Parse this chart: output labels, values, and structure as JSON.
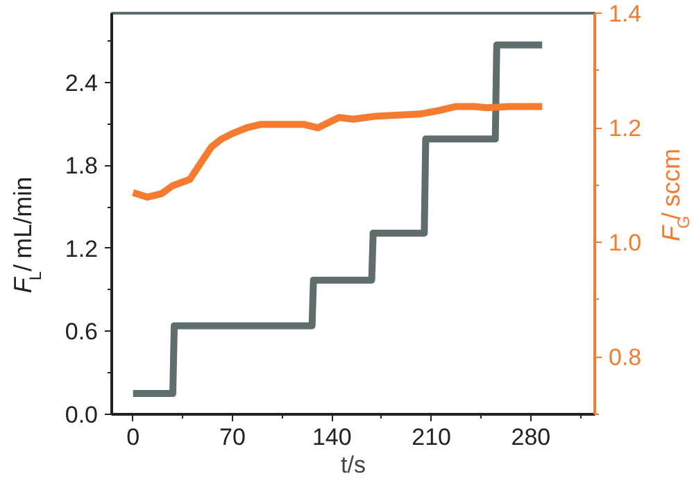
{
  "chart_data": {
    "type": "line",
    "xlabel": "t/s",
    "ylabel": "F$_{L}$/ mL/min",
    "y2label": "F$_{G}$/ sccm",
    "xlim": [
      -15,
      325
    ],
    "xticks": [
      0,
      70,
      140,
      210,
      280
    ],
    "ylim": [
      0,
      2.9
    ],
    "yticks": [
      {
        "value": 0,
        "label": "0.0"
      },
      0.6,
      1.2,
      1.8,
      2.4
    ],
    "y2lim": [
      0.7,
      1.4
    ],
    "y2ticks": [
      0.8,
      {
        "value": 1,
        "label": "1.0"
      },
      1.2,
      1.4
    ],
    "grid": false,
    "marker": "none",
    "line_style": "solid",
    "series": [
      {
        "color": "#5f6e6c",
        "x": [
          0,
          28,
          29,
          126,
          127,
          168,
          169,
          205,
          206,
          255,
          256,
          288
        ],
        "values": [
          0.15,
          0.15,
          0.64,
          0.64,
          0.97,
          0.97,
          1.31,
          1.31,
          1.99,
          1.99,
          2.67,
          2.67
        ]
      },
      {
        "color": "#f47b30",
        "axis": "y2",
        "x": [
          0,
          10,
          20,
          28,
          40,
          48,
          55,
          62,
          70,
          80,
          90,
          105,
          120,
          130,
          145,
          155,
          170,
          185,
          202,
          215,
          227,
          240,
          249,
          265,
          288
        ],
        "values": [
          1.087,
          1.079,
          1.085,
          1.099,
          1.11,
          1.14,
          1.166,
          1.18,
          1.19,
          1.2,
          1.206,
          1.206,
          1.206,
          1.2,
          1.218,
          1.215,
          1.22,
          1.222,
          1.224,
          1.23,
          1.237,
          1.237,
          1.235,
          1.237,
          1.237
        ]
      }
    ]
  }
}
